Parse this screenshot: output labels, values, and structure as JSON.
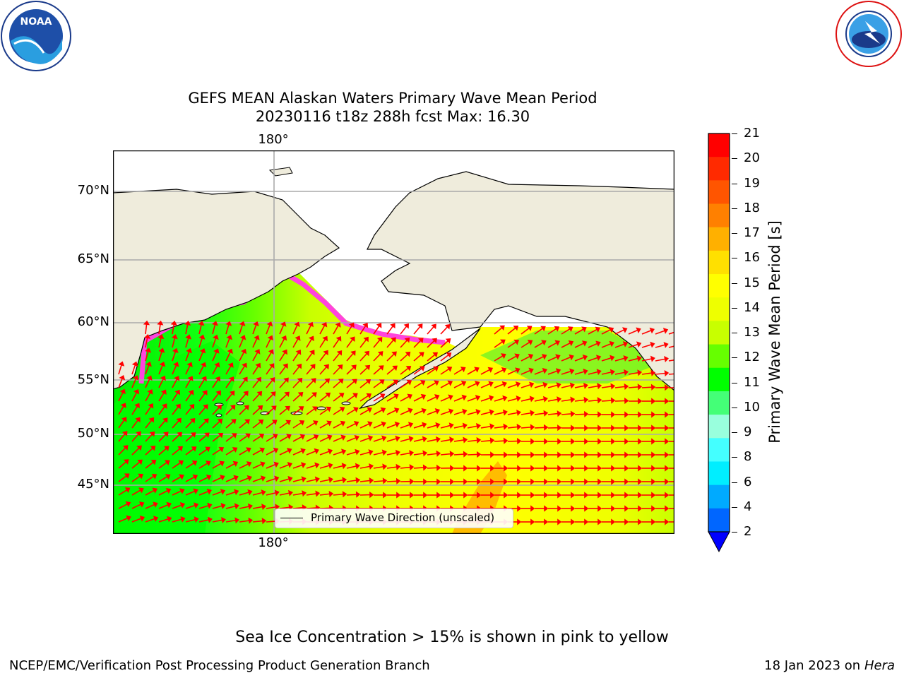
{
  "logos": {
    "noaa": {
      "text": "NOAA",
      "ring_text": "NATIONAL OCEANIC AND ATMOSPHERIC ADMINISTRATION · U.S. DEPARTMENT OF COMMERCE"
    },
    "nws": {
      "ring_text": "NATIONAL WEATHER SERVICE"
    }
  },
  "title": {
    "line1": "GEFS MEAN Alaskan Waters Primary Wave Mean Period",
    "line2": "20230116 t18z 288h fcst   Max: 16.30"
  },
  "map": {
    "lat_labels": [
      "70°N",
      "65°N",
      "60°N",
      "55°N",
      "50°N",
      "45°N"
    ],
    "lon_label_top": "180°",
    "lon_label_bottom": "180°",
    "legend_text": "Primary Wave Direction (unscaled)",
    "land_color": "#efecdc",
    "arrow_color": "#ff0000"
  },
  "colorbar": {
    "label": "Primary Wave Mean Period [s]",
    "ticks": [
      "21",
      "20",
      "19",
      "18",
      "17",
      "16",
      "15",
      "14",
      "13",
      "12",
      "11",
      "10",
      "9",
      "8",
      "6",
      "4",
      "2"
    ],
    "colors": [
      "#ff0000",
      "#ff2a00",
      "#ff5500",
      "#ff8000",
      "#ffb000",
      "#ffe000",
      "#ffff00",
      "#eeff00",
      "#c8ff00",
      "#66ff00",
      "#00ff00",
      "#44ff77",
      "#99ffdd",
      "#44ffff",
      "#00eeff",
      "#00aaff",
      "#0066ff"
    ],
    "extend_color": "#0000ff"
  },
  "footer": {
    "sea_ice_note": "Sea Ice Concentration > 15% is shown in pink to yellow",
    "branch": "NCEP/EMC/Verification Post Processing Product Generation Branch",
    "date": "18 Jan 2023 on ",
    "host": "Hera"
  }
}
